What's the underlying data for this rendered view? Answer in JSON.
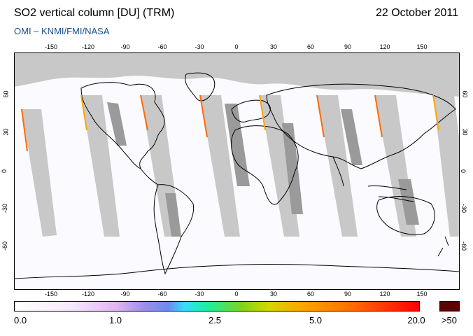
{
  "header": {
    "title": "SO2 vertical column [DU] (TRM)",
    "date": "22 October 2011",
    "credit": "OMI  –  KNMI/FMI/NASA"
  },
  "map": {
    "lon_ticks": [
      "-150",
      "-120",
      "-90",
      "-60",
      "-30",
      "0",
      "30",
      "60",
      "90",
      "120",
      "150"
    ],
    "lat_ticks": [
      "60",
      "30",
      "0",
      "-30",
      "-60"
    ],
    "colors": {
      "no_data": "#c8c8c8",
      "land_no_data": "#9a9a9a",
      "background": "#fbfbff",
      "coastline": "#000000"
    }
  },
  "colorbar": {
    "labels": [
      "0.0",
      "1.0",
      "2.5",
      "5.0",
      "20.0"
    ],
    "overflow_label": ">50",
    "colors": [
      "#ffffff",
      "#e2b6f3",
      "#6a8cf2",
      "#34dfff",
      "#22ee98",
      "#7bd520",
      "#d8d500",
      "#ffa400",
      "#ff0000"
    ],
    "overflow_color": "#5c0000"
  }
}
